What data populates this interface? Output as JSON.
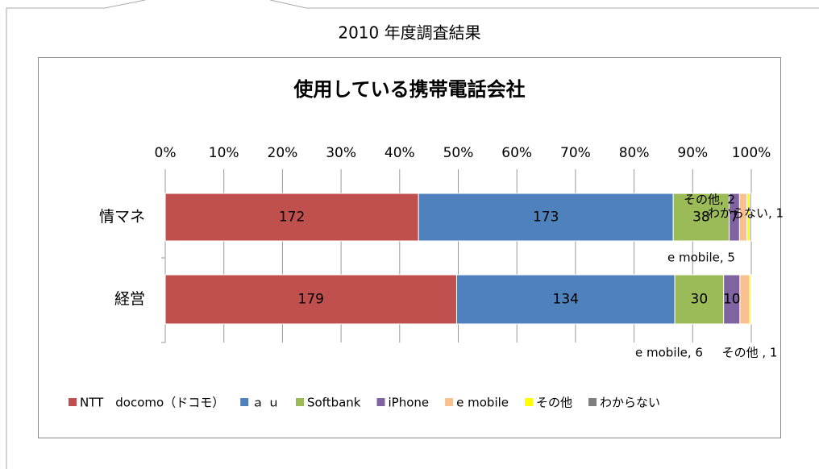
{
  "header": {
    "title": "2010 年度調査結果"
  },
  "chart_data": {
    "type": "stacked_hbar_percent",
    "title": "使用している携帯電話会社",
    "categories": [
      "情マネ",
      "経営"
    ],
    "series": [
      {
        "name": "NTT　docomo（ドコモ）",
        "color": "#c0504d",
        "values": [
          172,
          179
        ]
      },
      {
        "name": "ａ ｕ",
        "color": "#4f81bd",
        "values": [
          173,
          134
        ]
      },
      {
        "name": "Softbank",
        "color": "#9bbb59",
        "values": [
          38,
          30
        ]
      },
      {
        "name": "iPhone",
        "color": "#8064a2",
        "values": [
          7,
          10
        ]
      },
      {
        "name": "e mobile",
        "color": "#fac090",
        "values": [
          5,
          6
        ],
        "value_labels": [
          "e mobile, 5",
          "e mobile, 6"
        ]
      },
      {
        "name": "その他",
        "color": "#ffff00",
        "values": [
          2,
          1
        ],
        "value_labels": [
          "その他, 2",
          "その他 , 1"
        ]
      },
      {
        "name": "わからない",
        "color": "#7f7f7f",
        "values": [
          1,
          null
        ],
        "value_labels": [
          "わからない, 1",
          null
        ]
      }
    ],
    "xlim": [
      0,
      100
    ],
    "xticks": [
      {
        "value": 0,
        "label": "0%"
      },
      {
        "value": 10,
        "label": "10%"
      },
      {
        "value": 20,
        "label": "20%"
      },
      {
        "value": 30,
        "label": "30%"
      },
      {
        "value": 40,
        "label": "40%"
      },
      {
        "value": 50,
        "label": "50%"
      },
      {
        "value": 60,
        "label": "60%"
      },
      {
        "value": 70,
        "label": "70%"
      },
      {
        "value": 80,
        "label": "80%"
      },
      {
        "value": 90,
        "label": "90%"
      },
      {
        "value": 100,
        "label": "100%"
      }
    ],
    "grid": true,
    "legend": "bottom"
  }
}
